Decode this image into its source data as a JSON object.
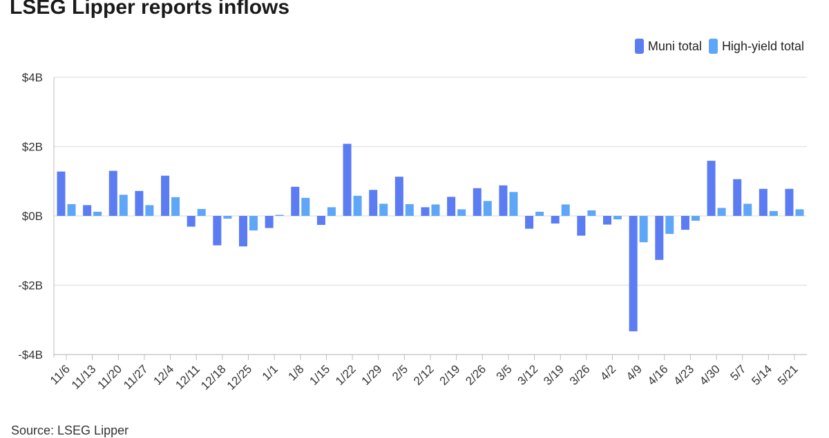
{
  "title": "LSEG Lipper reports inflows",
  "source": "Source: LSEG Lipper",
  "colors": {
    "muni": "#5b7cf2",
    "high_yield": "#5ea6f7",
    "grid": "#e6e6e6",
    "axis": "#bdbdbd"
  },
  "chart_data": {
    "type": "bar",
    "title": "LSEG Lipper reports inflows",
    "xlabel": "",
    "ylabel": "",
    "ylim": [
      -4,
      4
    ],
    "y_ticks": [
      "$4B",
      "$2B",
      "$0B",
      "-$2B",
      "-$4B"
    ],
    "y_tick_values": [
      4,
      2,
      0,
      -2,
      -4
    ],
    "grid": true,
    "legend_position": "top-right",
    "categories": [
      "11/6",
      "11/13",
      "11/20",
      "11/27",
      "12/4",
      "12/11",
      "12/18",
      "12/25",
      "1/1",
      "1/8",
      "1/15",
      "1/22",
      "1/29",
      "2/5",
      "2/12",
      "2/19",
      "2/26",
      "3/5",
      "3/12",
      "3/19",
      "3/26",
      "4/2",
      "4/9",
      "4/16",
      "4/23",
      "4/30",
      "5/7",
      "5/14",
      "5/21"
    ],
    "series": [
      {
        "name": "Muni total",
        "values": [
          1.28,
          0.31,
          1.3,
          0.72,
          1.16,
          -0.31,
          -0.85,
          -0.88,
          -0.35,
          0.84,
          -0.26,
          2.08,
          0.75,
          1.13,
          0.25,
          0.55,
          0.8,
          0.88,
          -0.37,
          -0.22,
          -0.57,
          -0.25,
          -3.33,
          -1.27,
          -0.4,
          1.59,
          1.06,
          0.78,
          0.78
        ]
      },
      {
        "name": "High-yield total",
        "values": [
          0.34,
          0.12,
          0.61,
          0.31,
          0.54,
          0.2,
          -0.08,
          -0.42,
          0.03,
          0.52,
          0.25,
          0.58,
          0.35,
          0.34,
          0.33,
          0.19,
          0.43,
          0.69,
          0.12,
          0.33,
          0.16,
          -0.1,
          -0.76,
          -0.52,
          -0.14,
          0.23,
          0.35,
          0.14,
          0.19
        ]
      }
    ]
  }
}
